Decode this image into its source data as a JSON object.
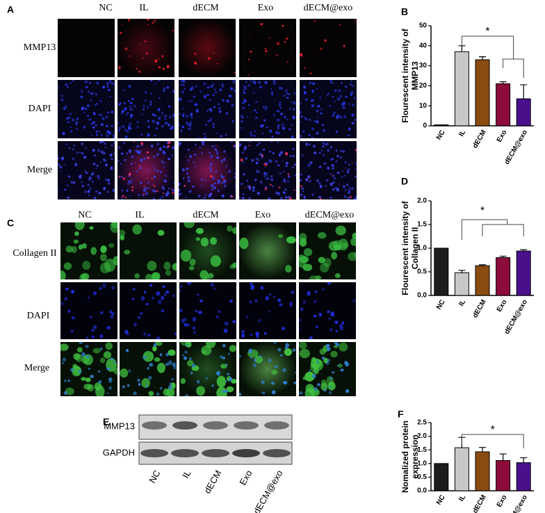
{
  "panels": {
    "A": {
      "label": "A",
      "columns": [
        "NC",
        "IL",
        "dECM",
        "Exo",
        "dECM@exo"
      ],
      "rows": [
        "MMP13",
        "DAPI",
        "Merge"
      ]
    },
    "C": {
      "label": "C",
      "columns": [
        "NC",
        "IL",
        "dECM",
        "Exo",
        "dECM@exo"
      ],
      "rows": [
        "Collagen II",
        "DAPI",
        "Merge"
      ]
    },
    "E": {
      "label": "E",
      "rows": [
        "MMP13",
        "GAPDH"
      ],
      "columns": [
        "NC",
        "IL",
        "dECM",
        "Exo",
        "dECM@exo"
      ]
    }
  },
  "chart_data": [
    {
      "type": "bar",
      "panel": "B",
      "ylabel": "Flourescent intensity of MMP13",
      "categories": [
        "NC",
        "IL",
        "dECM",
        "Exo",
        "dECM@exo"
      ],
      "values": [
        0.5,
        37,
        33,
        21,
        13.5
      ],
      "errors": [
        null,
        3,
        1.5,
        1,
        7
      ],
      "colors": [
        "#1c1c1c",
        "#c8c8c8",
        "#8a4a10",
        "#8c0c3c",
        "#4a108c"
      ],
      "ylim": [
        0,
        50
      ],
      "yticks": [
        0,
        10,
        20,
        30,
        40,
        50
      ],
      "annotation": "*"
    },
    {
      "type": "bar",
      "panel": "D",
      "ylabel": "Flourescent intensity of Collagen II",
      "categories": [
        "NC",
        "IL",
        "dECM",
        "Exo",
        "dECM@exo"
      ],
      "values": [
        1.0,
        0.48,
        0.63,
        0.8,
        0.94
      ],
      "errors": [
        null,
        0.05,
        0.02,
        0.03,
        0.03
      ],
      "colors": [
        "#1c1c1c",
        "#c8c8c8",
        "#8a4a10",
        "#8c0c3c",
        "#4a108c"
      ],
      "ylim": [
        0,
        2
      ],
      "yticks": [
        {
          "value": 0,
          "label": "0.0"
        },
        {
          "value": 0.5,
          "label": "0.5"
        },
        {
          "value": 1,
          "label": "1.0"
        },
        {
          "value": 1.5,
          "label": "1.5"
        },
        {
          "value": 2,
          "label": "2.0"
        }
      ],
      "annotation": "*"
    },
    {
      "type": "bar",
      "panel": "F",
      "ylabel": "Nomalized protein expression",
      "categories": [
        "NC",
        "IL",
        "dECM",
        "Exo",
        "dECM@exo"
      ],
      "values": [
        1.0,
        1.58,
        1.43,
        1.11,
        1.03
      ],
      "errors": [
        null,
        0.38,
        0.16,
        0.24,
        0.18
      ],
      "colors": [
        "#1c1c1c",
        "#c8c8c8",
        "#8a4a10",
        "#8c0c3c",
        "#4a108c"
      ],
      "ylim": [
        0,
        2.5
      ],
      "yticks": [
        {
          "value": 0,
          "label": "0.0"
        },
        {
          "value": 0.5,
          "label": "0.5"
        },
        {
          "value": 1,
          "label": "1.0"
        },
        {
          "value": 1.5,
          "label": "1.5"
        },
        {
          "value": 2,
          "label": "2.0"
        },
        {
          "value": 2.5,
          "label": "2.5"
        }
      ],
      "annotation": "*"
    }
  ]
}
